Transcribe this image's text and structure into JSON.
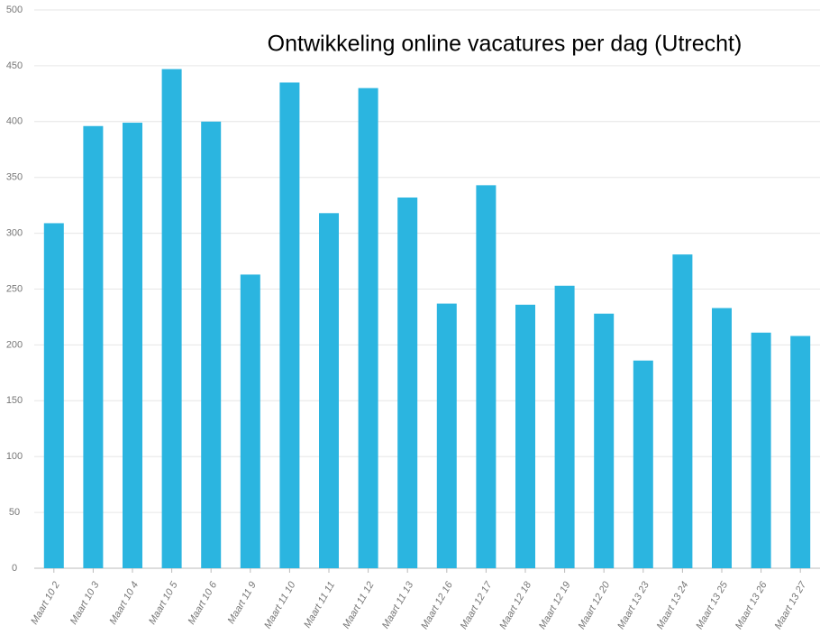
{
  "chart_data": {
    "type": "bar",
    "title": "Ontwikkeling online vacatures per dag (Utrecht)",
    "categories": [
      "Maart 10 2",
      "Maart 10 3",
      "Maart 10 4",
      "Maart 10 5",
      "Maart 10 6",
      "Maart 11 9",
      "Maart 11 10",
      "Maart 11 11",
      "Maart 11 12",
      "Maart 11 13",
      "Maart 12 16",
      "Maart 12 17",
      "Maart 12 18",
      "Maart 12 19",
      "Maart 12 20",
      "Maart 13 23",
      "Maart 13 24",
      "Maart 13 25",
      "Maart 13 26",
      "Maart 13 27"
    ],
    "values": [
      309,
      396,
      399,
      447,
      400,
      263,
      435,
      318,
      430,
      332,
      237,
      343,
      236,
      253,
      228,
      186,
      281,
      233,
      211,
      208
    ],
    "color": "#2bb5e0",
    "ylim": [
      0,
      500
    ],
    "yticks": [
      0,
      50,
      100,
      150,
      200,
      250,
      300,
      350,
      400,
      450,
      500
    ],
    "grid": true
  }
}
